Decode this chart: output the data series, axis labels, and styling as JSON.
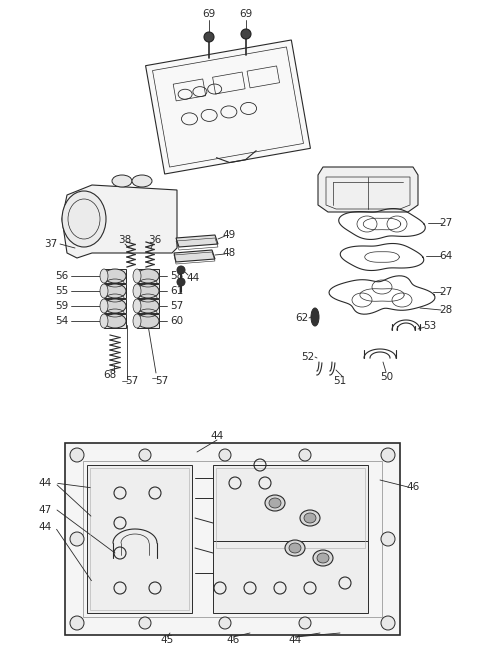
{
  "bg_color": "#ffffff",
  "line_color": "#2a2a2a",
  "fig_width": 4.8,
  "fig_height": 6.55,
  "dpi": 100,
  "font_size": 7.5,
  "line_width": 0.8
}
